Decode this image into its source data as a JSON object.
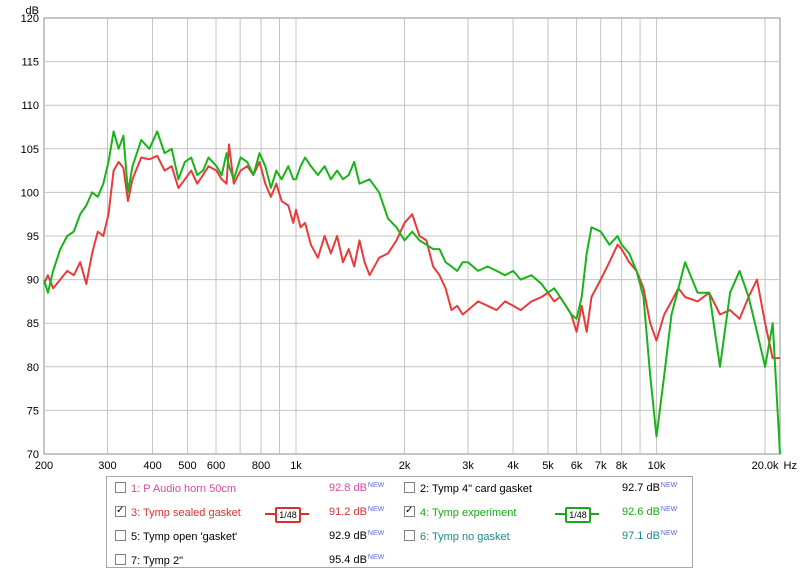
{
  "chart_data": {
    "type": "line",
    "xscale": "log",
    "xlim": [
      200,
      22000
    ],
    "ylim": [
      70,
      120
    ],
    "ylabel": "dB",
    "xlabel": "Hz",
    "grid": true,
    "y_ticks": [
      70,
      75,
      80,
      85,
      90,
      95,
      100,
      105,
      110,
      115,
      120
    ],
    "x_major_ticks": [
      {
        "v": 200,
        "label": "200"
      },
      {
        "v": 300,
        "label": "300"
      },
      {
        "v": 400,
        "label": "400"
      },
      {
        "v": 500,
        "label": "500"
      },
      {
        "v": 600,
        "label": "600"
      },
      {
        "v": 800,
        "label": "800"
      },
      {
        "v": 1000,
        "label": "1k"
      },
      {
        "v": 2000,
        "label": "2k"
      },
      {
        "v": 3000,
        "label": "3k"
      },
      {
        "v": 4000,
        "label": "4k"
      },
      {
        "v": 5000,
        "label": "5k"
      },
      {
        "v": 6000,
        "label": "6k"
      },
      {
        "v": 7000,
        "label": "7k"
      },
      {
        "v": 8000,
        "label": "8k"
      },
      {
        "v": 10000,
        "label": "10k"
      },
      {
        "v": 20000,
        "label": "20.0k"
      }
    ],
    "x_minor_ticks": [
      700,
      900,
      9000
    ],
    "series": [
      {
        "name": "Tymp sealed gasket",
        "color": "#e83c3c",
        "points": [
          [
            200,
            89.5
          ],
          [
            205,
            90.5
          ],
          [
            212,
            89
          ],
          [
            222,
            90
          ],
          [
            232,
            91
          ],
          [
            242,
            90.5
          ],
          [
            252,
            92
          ],
          [
            262,
            89.5
          ],
          [
            272,
            93
          ],
          [
            282,
            95.5
          ],
          [
            292,
            95
          ],
          [
            302,
            97.5
          ],
          [
            312,
            102.5
          ],
          [
            322,
            103.5
          ],
          [
            332,
            102.8
          ],
          [
            342,
            99
          ],
          [
            352,
            101.5
          ],
          [
            372,
            104
          ],
          [
            392,
            103.8
          ],
          [
            412,
            104.2
          ],
          [
            432,
            102.5
          ],
          [
            452,
            103
          ],
          [
            472,
            100.5
          ],
          [
            492,
            101.5
          ],
          [
            512,
            102.5
          ],
          [
            532,
            101
          ],
          [
            552,
            102
          ],
          [
            572,
            103
          ],
          [
            602,
            102.5
          ],
          [
            622,
            101.5
          ],
          [
            642,
            101
          ],
          [
            652,
            105.5
          ],
          [
            672,
            101
          ],
          [
            702,
            102.5
          ],
          [
            732,
            103
          ],
          [
            762,
            102
          ],
          [
            792,
            103.5
          ],
          [
            822,
            101
          ],
          [
            852,
            99.5
          ],
          [
            882,
            101
          ],
          [
            912,
            99
          ],
          [
            952,
            98.5
          ],
          [
            982,
            96.5
          ],
          [
            1000,
            98
          ],
          [
            1030,
            96
          ],
          [
            1060,
            96.5
          ],
          [
            1100,
            94
          ],
          [
            1150,
            92.5
          ],
          [
            1200,
            95
          ],
          [
            1250,
            93
          ],
          [
            1300,
            95
          ],
          [
            1350,
            92
          ],
          [
            1400,
            93.5
          ],
          [
            1450,
            91.5
          ],
          [
            1500,
            94.5
          ],
          [
            1550,
            92
          ],
          [
            1600,
            90.5
          ],
          [
            1700,
            92.5
          ],
          [
            1800,
            93
          ],
          [
            1900,
            94.5
          ],
          [
            2000,
            96.5
          ],
          [
            2100,
            97.5
          ],
          [
            2200,
            95
          ],
          [
            2300,
            94.5
          ],
          [
            2400,
            91.5
          ],
          [
            2500,
            90.5
          ],
          [
            2600,
            89
          ],
          [
            2700,
            86.5
          ],
          [
            2800,
            87
          ],
          [
            2900,
            86
          ],
          [
            3000,
            86.5
          ],
          [
            3200,
            87.5
          ],
          [
            3400,
            87
          ],
          [
            3600,
            86.5
          ],
          [
            3800,
            87.5
          ],
          [
            4000,
            87
          ],
          [
            4200,
            86.5
          ],
          [
            4500,
            87.5
          ],
          [
            4800,
            88
          ],
          [
            5000,
            88.5
          ],
          [
            5200,
            87.5
          ],
          [
            5400,
            88
          ],
          [
            5600,
            87
          ],
          [
            5800,
            86
          ],
          [
            6000,
            84
          ],
          [
            6200,
            87
          ],
          [
            6400,
            84
          ],
          [
            6600,
            88
          ],
          [
            7000,
            90
          ],
          [
            7400,
            92
          ],
          [
            7800,
            94
          ],
          [
            8000,
            93.5
          ],
          [
            8400,
            92
          ],
          [
            8800,
            91
          ],
          [
            9200,
            89
          ],
          [
            9600,
            85
          ],
          [
            10000,
            83
          ],
          [
            10500,
            86
          ],
          [
            11000,
            87.5
          ],
          [
            11500,
            89
          ],
          [
            12000,
            88
          ],
          [
            13000,
            87.5
          ],
          [
            14000,
            88.5
          ],
          [
            15000,
            86
          ],
          [
            16000,
            86.5
          ],
          [
            17000,
            85.5
          ],
          [
            18000,
            88
          ],
          [
            19000,
            90
          ],
          [
            20000,
            85
          ],
          [
            21000,
            81
          ],
          [
            22000,
            81
          ]
        ]
      },
      {
        "name": "Tymp experiment",
        "color": "#18b418",
        "points": [
          [
            200,
            90
          ],
          [
            205,
            88.5
          ],
          [
            212,
            91
          ],
          [
            222,
            93.5
          ],
          [
            232,
            95
          ],
          [
            242,
            95.5
          ],
          [
            252,
            97.5
          ],
          [
            262,
            98.5
          ],
          [
            272,
            100
          ],
          [
            282,
            99.5
          ],
          [
            292,
            101
          ],
          [
            302,
            103.5
          ],
          [
            312,
            107
          ],
          [
            322,
            105
          ],
          [
            332,
            106.5
          ],
          [
            342,
            100
          ],
          [
            352,
            103
          ],
          [
            372,
            106
          ],
          [
            392,
            105
          ],
          [
            412,
            107
          ],
          [
            432,
            104.5
          ],
          [
            452,
            105
          ],
          [
            472,
            101.5
          ],
          [
            492,
            103.5
          ],
          [
            512,
            104
          ],
          [
            532,
            102
          ],
          [
            552,
            102.5
          ],
          [
            572,
            104
          ],
          [
            602,
            103
          ],
          [
            622,
            102
          ],
          [
            642,
            104.5
          ],
          [
            652,
            103
          ],
          [
            672,
            101.5
          ],
          [
            702,
            104
          ],
          [
            732,
            103.5
          ],
          [
            762,
            102
          ],
          [
            792,
            104.5
          ],
          [
            822,
            103
          ],
          [
            852,
            100.5
          ],
          [
            882,
            102.5
          ],
          [
            912,
            101.5
          ],
          [
            952,
            103
          ],
          [
            982,
            101.5
          ],
          [
            1000,
            101.5
          ],
          [
            1030,
            103
          ],
          [
            1060,
            104
          ],
          [
            1100,
            103
          ],
          [
            1150,
            102
          ],
          [
            1200,
            103
          ],
          [
            1250,
            101.5
          ],
          [
            1300,
            102.5
          ],
          [
            1350,
            101.5
          ],
          [
            1400,
            102
          ],
          [
            1450,
            103.5
          ],
          [
            1500,
            101
          ],
          [
            1600,
            101.5
          ],
          [
            1700,
            100
          ],
          [
            1800,
            97
          ],
          [
            1900,
            96
          ],
          [
            2000,
            94.5
          ],
          [
            2100,
            95.5
          ],
          [
            2200,
            94.5
          ],
          [
            2300,
            94
          ],
          [
            2400,
            93.5
          ],
          [
            2500,
            93.5
          ],
          [
            2600,
            92
          ],
          [
            2700,
            91.5
          ],
          [
            2800,
            91
          ],
          [
            2900,
            92
          ],
          [
            3000,
            92
          ],
          [
            3200,
            91
          ],
          [
            3400,
            91.5
          ],
          [
            3600,
            91
          ],
          [
            3800,
            90.5
          ],
          [
            4000,
            91
          ],
          [
            4200,
            90
          ],
          [
            4500,
            90.5
          ],
          [
            4800,
            89.5
          ],
          [
            5000,
            88.5
          ],
          [
            5200,
            89
          ],
          [
            5400,
            88
          ],
          [
            5600,
            87
          ],
          [
            5800,
            86
          ],
          [
            6000,
            85.5
          ],
          [
            6200,
            88
          ],
          [
            6400,
            93
          ],
          [
            6600,
            96
          ],
          [
            7000,
            95.5
          ],
          [
            7400,
            94
          ],
          [
            7800,
            95
          ],
          [
            8000,
            94
          ],
          [
            8400,
            93
          ],
          [
            8800,
            91
          ],
          [
            9200,
            88
          ],
          [
            9600,
            79
          ],
          [
            10000,
            72
          ],
          [
            10500,
            79
          ],
          [
            11000,
            86
          ],
          [
            11500,
            89
          ],
          [
            12000,
            92
          ],
          [
            13000,
            88.5
          ],
          [
            14000,
            88.5
          ],
          [
            15000,
            80
          ],
          [
            16000,
            88.5
          ],
          [
            17000,
            91
          ],
          [
            18000,
            88
          ],
          [
            19000,
            84
          ],
          [
            20000,
            80
          ],
          [
            21000,
            85
          ],
          [
            22000,
            70
          ]
        ]
      }
    ]
  },
  "legend": {
    "entries": [
      {
        "index_label": "1: P Audio horn 50cm",
        "checked": false,
        "value": "92.8 dB",
        "badge": "NEW",
        "color": "#d84a9a",
        "smoothing": ""
      },
      {
        "index_label": "2: Tymp 4\" card gasket",
        "checked": false,
        "value": "92.7 dB",
        "badge": "NEW",
        "color": "#000000",
        "smoothing": ""
      },
      {
        "index_label": "3: Tymp sealed gasket",
        "checked": true,
        "value": "91.2 dB",
        "badge": "NEW",
        "color": "#d83030",
        "smoothing": "1/48"
      },
      {
        "index_label": "4: Tymp experiment",
        "checked": true,
        "value": "92.6 dB",
        "badge": "NEW",
        "color": "#18a818",
        "smoothing": "1/48"
      },
      {
        "index_label": "5: Tymp open 'gasket'",
        "checked": false,
        "value": "92.9 dB",
        "badge": "NEW",
        "color": "#000000",
        "smoothing": ""
      },
      {
        "index_label": "6: Tymp no gasket",
        "checked": false,
        "value": "97.1 dB",
        "badge": "NEW",
        "color": "#1a8a8a",
        "smoothing": ""
      },
      {
        "index_label": "7: Tymp 2\"",
        "checked": false,
        "value": "95.4 dB",
        "badge": "NEW",
        "color": "#000000",
        "smoothing": ""
      }
    ]
  }
}
